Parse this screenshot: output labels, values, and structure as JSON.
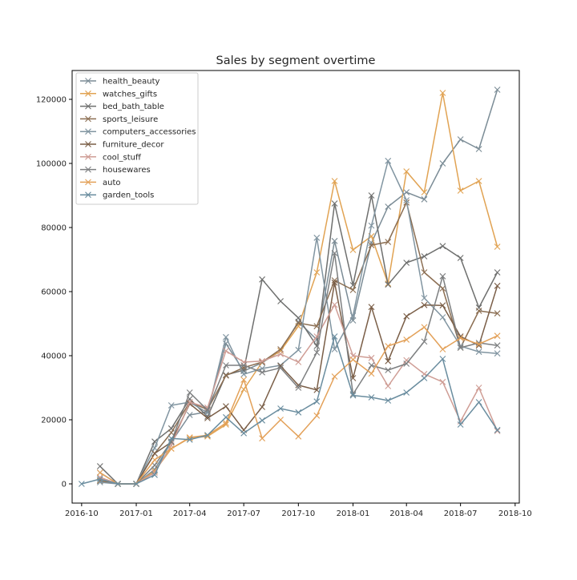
{
  "chart_data": {
    "type": "line",
    "title": "Sales by segment overtime",
    "xlabel": "",
    "ylabel": "",
    "xlim": [
      "2016-09-15",
      "2018-10-08"
    ],
    "ylim": [
      -6000,
      129000
    ],
    "x_ticks": [
      "2016-10",
      "2017-01",
      "2017-04",
      "2017-07",
      "2017-10",
      "2018-01",
      "2018-04",
      "2018-07",
      "2018-10"
    ],
    "y_ticks": [
      0,
      20000,
      40000,
      60000,
      80000,
      100000,
      120000
    ],
    "y_tick_labels": [
      "0",
      "20000",
      "40000",
      "60000",
      "80000",
      "100000",
      "120000"
    ],
    "grid": false,
    "legend_position": "upper-left",
    "marker": "x",
    "x": [
      "2016-10-01",
      "2016-11-01",
      "2016-12-01",
      "2017-01-01",
      "2017-02-01",
      "2017-03-01",
      "2017-04-01",
      "2017-05-01",
      "2017-06-01",
      "2017-07-01",
      "2017-08-01",
      "2017-09-01",
      "2017-10-01",
      "2017-11-01",
      "2017-12-01",
      "2018-01-01",
      "2018-02-01",
      "2018-03-01",
      "2018-04-01",
      "2018-05-01",
      "2018-06-01",
      "2018-07-01",
      "2018-08-01",
      "2018-09-01"
    ],
    "series": [
      {
        "name": "health_beauty",
        "color": "#7b8c96",
        "values": [
          null,
          900,
          0,
          0,
          4500,
          13000,
          21500,
          22500,
          43800,
          35200,
          37800,
          41500,
          50600,
          45000,
          75800,
          51000,
          75200,
          86500,
          91000,
          88800,
          100000,
          107500,
          104500,
          123000
        ]
      },
      {
        "name": "watches_gifts",
        "color": "#e1a353",
        "values": [
          null,
          1000,
          0,
          0,
          4000,
          11000,
          14300,
          14800,
          18500,
          29500,
          38000,
          41500,
          49200,
          66000,
          94500,
          73000,
          77300,
          62500,
          97500,
          91000,
          122000,
          91500,
          94500,
          74000
        ]
      },
      {
        "name": "bed_bath_table",
        "color": "#6e6f6e",
        "values": [
          null,
          5500,
          0,
          0,
          13200,
          17300,
          26500,
          21000,
          34000,
          35500,
          63800,
          57000,
          51800,
          43000,
          87500,
          62000,
          90000,
          62200,
          69000,
          71000,
          74200,
          70500,
          55000,
          66000
        ]
      },
      {
        "name": "sports_leisure",
        "color": "#8b6e52",
        "values": [
          null,
          1000,
          0,
          0,
          9500,
          16000,
          25500,
          23200,
          33800,
          36300,
          38000,
          42000,
          50200,
          49200,
          63500,
          60500,
          74500,
          75500,
          87800,
          66000,
          61000,
          42500,
          54000,
          53200
        ]
      },
      {
        "name": "computers_accessories",
        "color": "#8195a1",
        "values": [
          null,
          500,
          0,
          0,
          11200,
          24500,
          25500,
          22200,
          45800,
          34200,
          36000,
          37000,
          41800,
          76800,
          42000,
          52500,
          80600,
          100800,
          88500,
          58000,
          52000,
          43000,
          41200,
          40700
        ]
      },
      {
        "name": "furniture_decor",
        "color": "#7a5e47",
        "values": [
          null,
          2000,
          0,
          0,
          9500,
          13000,
          25000,
          20500,
          24200,
          16800,
          24000,
          36800,
          30800,
          29300,
          62800,
          33000,
          55200,
          38300,
          52300,
          55800,
          55700,
          46000,
          43200,
          61800
        ]
      },
      {
        "name": "cool_stuff",
        "color": "#cf9d95",
        "values": [
          null,
          2000,
          0,
          0,
          3500,
          12000,
          25500,
          23800,
          41500,
          38000,
          38300,
          40500,
          38000,
          46000,
          55900,
          40000,
          39300,
          30500,
          38600,
          34300,
          31800,
          19500,
          30000,
          16500
        ]
      },
      {
        "name": "housewares",
        "color": "#7d7f80",
        "values": [
          null,
          3500,
          0,
          0,
          5800,
          13200,
          28500,
          23000,
          37000,
          37000,
          34800,
          36200,
          30000,
          41000,
          72000,
          28000,
          37000,
          35500,
          37500,
          44400,
          64800,
          42500,
          44000,
          43200
        ]
      },
      {
        "name": "auto",
        "color": "#e3a159",
        "values": [
          null,
          3500,
          0,
          0,
          7500,
          11000,
          14500,
          15200,
          19000,
          32500,
          14200,
          20000,
          14800,
          21300,
          33500,
          38800,
          34400,
          43000,
          45000,
          48900,
          42000,
          45500,
          43600,
          46200
        ]
      },
      {
        "name": "garden_tools",
        "color": "#6a8d9f",
        "values": [
          0,
          1500,
          0,
          0,
          2800,
          14200,
          13800,
          15200,
          20800,
          15800,
          19800,
          23500,
          22300,
          25700,
          46000,
          27600,
          27000,
          26000,
          28500,
          33000,
          39000,
          18500,
          25500,
          16800
        ]
      }
    ]
  }
}
